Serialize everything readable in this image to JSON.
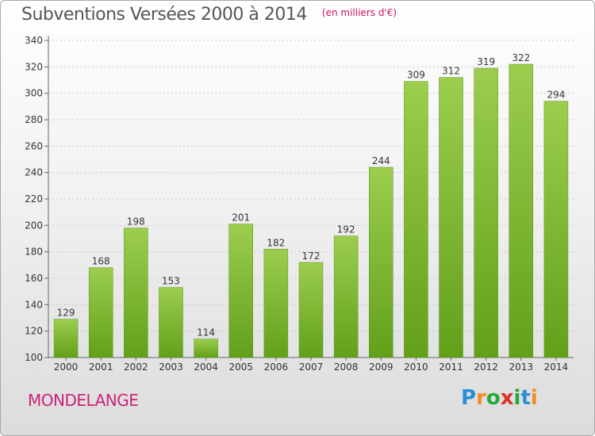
{
  "header": {
    "title": "Subventions Versées 2000 à 2014",
    "subtitle": "(en milliers d'€)"
  },
  "footer": {
    "commune": "MONDELANGE",
    "logo_text": "Proxiti"
  },
  "colors": {
    "bar_light": "#9ccd4f",
    "bar_dark": "#62a01a",
    "title": "#555555",
    "accent": "#cc2277"
  },
  "chart_data": {
    "type": "bar",
    "categories": [
      "2000",
      "2001",
      "2002",
      "2003",
      "2004",
      "2005",
      "2006",
      "2007",
      "2008",
      "2009",
      "2010",
      "2011",
      "2012",
      "2013",
      "2014"
    ],
    "values": [
      129,
      168,
      198,
      153,
      114,
      201,
      182,
      172,
      192,
      244,
      309,
      312,
      319,
      322,
      294
    ],
    "data_labels": [
      "129",
      "168",
      "198",
      "153",
      "114",
      "201",
      "182",
      "172",
      "192",
      "244",
      "309",
      "312",
      "319",
      "322",
      "294"
    ],
    "ylim": [
      100,
      340
    ],
    "yticks": [
      100,
      120,
      140,
      160,
      180,
      200,
      220,
      240,
      260,
      280,
      300,
      320,
      340
    ],
    "grid": true,
    "legend": "none"
  }
}
